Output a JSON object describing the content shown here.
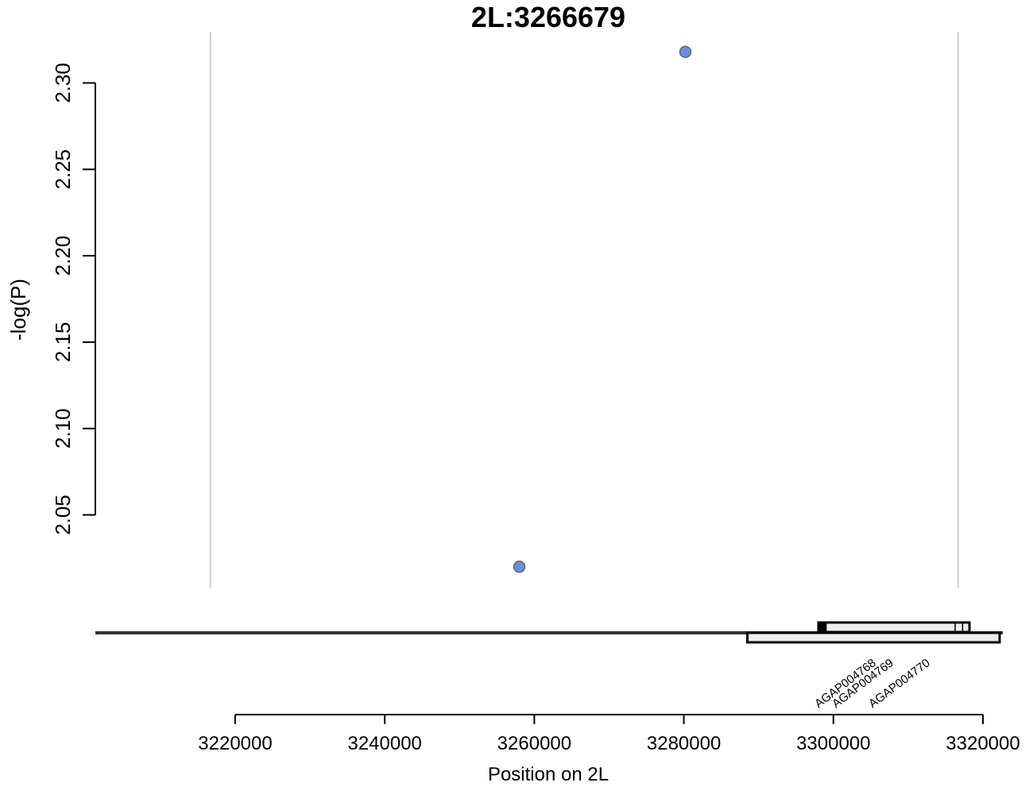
{
  "chart_data": {
    "type": "scatter",
    "title": "2L:3266679",
    "ylabel": "-log(P)",
    "xlabel": "Position on 2L",
    "ylim": [
      2.0,
      2.33
    ],
    "xlim": [
      3201200,
      3321200
    ],
    "y_ticks": [
      2.05,
      2.1,
      2.15,
      2.2,
      2.25,
      2.3
    ],
    "y_tick_labels": [
      "2.05",
      "2.10",
      "2.15",
      "2.20",
      "2.25",
      "2.30"
    ],
    "x_ticks": [
      3220000,
      3240000,
      3260000,
      3280000,
      3300000,
      3320000
    ],
    "x_tick_labels": [
      "3220000",
      "3240000",
      "3260000",
      "3280000",
      "3300000",
      "3320000"
    ],
    "vlines": [
      3216679,
      3316679
    ],
    "grid": false,
    "point_color": "#6a8fde",
    "points": [
      {
        "x": 3258000,
        "y": 2.02
      },
      {
        "x": 3280200,
        "y": 2.318
      }
    ],
    "genes": [
      {
        "name": "AGAP004768",
        "start": 3298000,
        "end": 3318200,
        "row": 0,
        "exons": [
          [
            3298000,
            3299100
          ],
          [
            3316200,
            3316300
          ],
          [
            3317200,
            3317300
          ]
        ]
      },
      {
        "name": "AGAP004769",
        "start": 3288500,
        "end": 3323400,
        "row": 1,
        "exons": [
          [
            3288500,
            3289000
          ],
          [
            3289200,
            3289400
          ],
          [
            3289600,
            3289800
          ],
          [
            3290000,
            3290200
          ],
          [
            3311300,
            3312500
          ]
        ]
      },
      {
        "name": "AGAP004770",
        "start": 3288500,
        "end": 3323400,
        "row": 1,
        "exons": []
      }
    ]
  }
}
